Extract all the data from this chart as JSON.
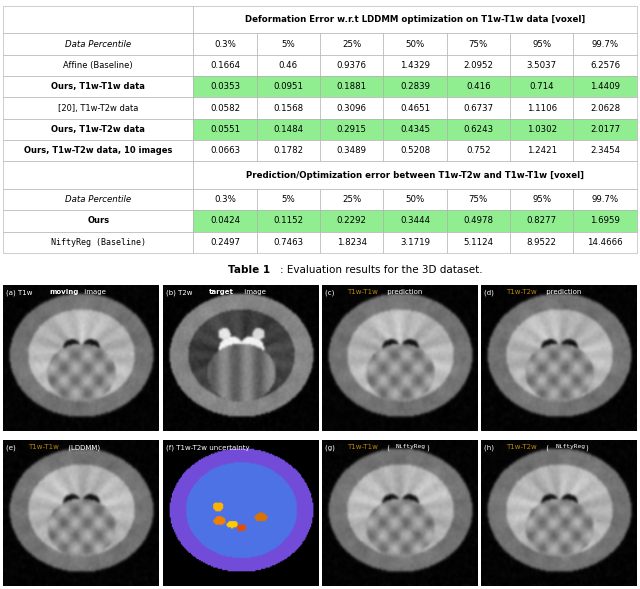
{
  "table_title": "Deformation Error w.r.t LDDMM optimization on T1w-T1w data [voxel]",
  "table_title2": "Prediction/Optimization error between T1w-T2w and T1w-T1w [voxel]",
  "col_headers": [
    "0.3%",
    "5%",
    "25%",
    "50%",
    "75%",
    "95%",
    "99.7%"
  ],
  "rows_part1": [
    {
      "label": "Affine (Baseline)",
      "bold": false,
      "italic": false,
      "highlight": false,
      "mono": false,
      "values": [
        "0.1664",
        "0.46",
        "0.9376",
        "1.4329",
        "2.0952",
        "3.5037",
        "6.2576"
      ]
    },
    {
      "label": "Ours, T1w-T1w data",
      "bold": true,
      "italic": false,
      "highlight": true,
      "mono": false,
      "values": [
        "0.0353",
        "0.0951",
        "0.1881",
        "0.2839",
        "0.416",
        "0.714",
        "1.4409"
      ]
    },
    {
      "label": "[20], T1w-T2w data",
      "bold": false,
      "italic": false,
      "highlight": false,
      "mono": false,
      "values": [
        "0.0582",
        "0.1568",
        "0.3096",
        "0.4651",
        "0.6737",
        "1.1106",
        "2.0628"
      ]
    },
    {
      "label": "Ours, T1w-T2w data",
      "bold": true,
      "italic": false,
      "highlight": true,
      "mono": false,
      "values": [
        "0.0551",
        "0.1484",
        "0.2915",
        "0.4345",
        "0.6243",
        "1.0302",
        "2.0177"
      ]
    },
    {
      "label": "Ours, T1w-T2w data, 10 images",
      "bold": true,
      "italic": false,
      "highlight": false,
      "mono": false,
      "values": [
        "0.0663",
        "0.1782",
        "0.3489",
        "0.5208",
        "0.752",
        "1.2421",
        "2.3454"
      ]
    }
  ],
  "rows_part2": [
    {
      "label": "Ours",
      "bold": true,
      "italic": false,
      "highlight": true,
      "mono": false,
      "values": [
        "0.0424",
        "0.1152",
        "0.2292",
        "0.3444",
        "0.4978",
        "0.8277",
        "1.6959"
      ]
    },
    {
      "label": "NiftyReg (Baseline)",
      "bold": false,
      "italic": false,
      "highlight": false,
      "mono": true,
      "values": [
        "0.2497",
        "0.7463",
        "1.8234",
        "3.1719",
        "5.1124",
        "8.9522",
        "14.4666"
      ]
    }
  ],
  "green": "#90EE90",
  "white": "#ffffff",
  "label_defs": [
    {
      "text": "(a) T1w ",
      "bold_word": "moving",
      "suffix": " image",
      "color": "#ffffff",
      "bold_color": "#ffffff"
    },
    {
      "text": "(b) T2w ",
      "bold_word": "target",
      "suffix": " image",
      "color": "#ffffff",
      "bold_color": "#ffffff"
    },
    {
      "text": "(c) ",
      "bold_word": "T1w-T1w",
      "suffix": " prediction",
      "color": "#ffffff",
      "bold_color": "#b8860b"
    },
    {
      "text": "(d) ",
      "bold_word": "T1w-T2w",
      "suffix": " prediction",
      "color": "#ffffff",
      "bold_color": "#b8860b"
    },
    {
      "text": "(e) ",
      "bold_word": "T1w-T1w",
      "suffix": " (LDDMM)",
      "color": "#ffffff",
      "bold_color": "#b8860b"
    },
    {
      "text": "(f) T1w-T2w uncertainty",
      "bold_word": "",
      "suffix": "",
      "color": "#ffffff",
      "bold_color": "#ffffff"
    },
    {
      "text": "(g) ",
      "bold_word": "T1w-T1w",
      "suffix": " (NiftyReg)",
      "color": "#ffffff",
      "bold_color": "#b8860b"
    },
    {
      "text": "(h) ",
      "bold_word": "T1w-T2w",
      "suffix": " (NiftyReg)",
      "color": "#ffffff",
      "bold_color": "#b8860b"
    }
  ],
  "niftyreg_suffix_mono": true
}
